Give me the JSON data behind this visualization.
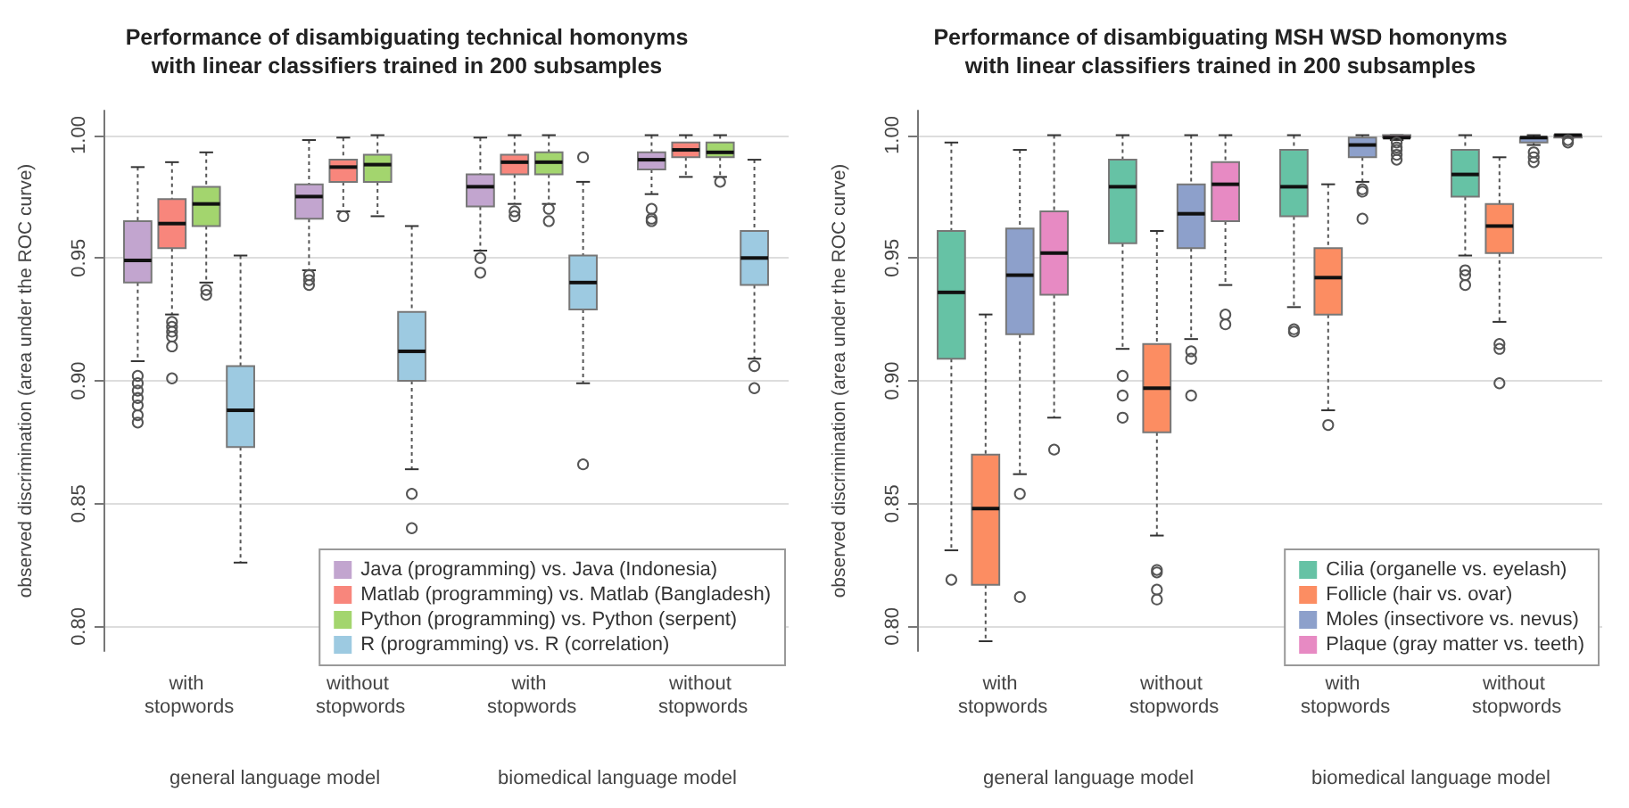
{
  "chart_data": [
    {
      "type": "box",
      "title": "Performance of disambiguating technical homonyms\nwith linear classifiers trained in 200 subsamples",
      "ylabel": "observed discrimination (area under the ROC curve)",
      "categories": [
        "with stopwords",
        "without stopwords",
        "with stopwords",
        "without stopwords"
      ],
      "annotations": [
        "general language model",
        "biomedical language model"
      ],
      "ylim": [
        0.79,
        1.01
      ],
      "yticks": [
        {
          "value": 0.8,
          "label": "0.80"
        },
        {
          "value": 0.85,
          "label": "0.85"
        },
        {
          "value": 0.9,
          "label": "0.90"
        },
        {
          "value": 0.95,
          "label": "0.95"
        },
        {
          "value": 1.0,
          "label": "1.00"
        }
      ],
      "grid": "y",
      "legend": "bottom right",
      "series": [
        {
          "name": "Java (programming) vs. Java (Indonesia)",
          "color": "#c2a5cf",
          "boxes": [
            {
              "low": 0.908,
              "q1": 0.94,
              "median": 0.949,
              "q3": 0.965,
              "high": 0.987,
              "outliers": [
                0.902,
                0.899,
                0.896,
                0.893,
                0.89,
                0.886,
                0.883
              ]
            },
            {
              "low": 0.945,
              "q1": 0.966,
              "median": 0.975,
              "q3": 0.98,
              "high": 0.998,
              "outliers": [
                0.943,
                0.941,
                0.939
              ]
            },
            {
              "low": 0.953,
              "q1": 0.971,
              "median": 0.979,
              "q3": 0.984,
              "high": 0.999,
              "outliers": [
                0.95,
                0.944
              ]
            },
            {
              "low": 0.976,
              "q1": 0.986,
              "median": 0.99,
              "q3": 0.993,
              "high": 1.0,
              "outliers": [
                0.97,
                0.966,
                0.965
              ]
            }
          ]
        },
        {
          "name": "Matlab (programming) vs. Matlab (Bangladesh)",
          "color": "#f8867c",
          "boxes": [
            {
              "low": 0.927,
              "q1": 0.954,
              "median": 0.964,
              "q3": 0.974,
              "high": 0.989,
              "outliers": [
                0.924,
                0.922,
                0.92,
                0.918,
                0.914,
                0.901
              ]
            },
            {
              "low": 0.969,
              "q1": 0.981,
              "median": 0.987,
              "q3": 0.99,
              "high": 0.999,
              "outliers": [
                0.967
              ]
            },
            {
              "low": 0.972,
              "q1": 0.984,
              "median": 0.989,
              "q3": 0.992,
              "high": 1.0,
              "outliers": [
                0.969,
                0.967
              ]
            },
            {
              "low": 0.983,
              "q1": 0.991,
              "median": 0.994,
              "q3": 0.997,
              "high": 1.0
            }
          ]
        },
        {
          "name": "Python (programming) vs. Python (serpent)",
          "color": "#a3d56e",
          "boxes": [
            {
              "low": 0.94,
              "q1": 0.963,
              "median": 0.972,
              "q3": 0.979,
              "high": 0.993,
              "outliers": [
                0.937,
                0.935
              ]
            },
            {
              "low": 0.967,
              "q1": 0.981,
              "median": 0.988,
              "q3": 0.992,
              "high": 1.0
            },
            {
              "low": 0.972,
              "q1": 0.984,
              "median": 0.989,
              "q3": 0.993,
              "high": 1.0,
              "outliers": [
                0.97,
                0.965
              ]
            },
            {
              "low": 0.983,
              "q1": 0.991,
              "median": 0.993,
              "q3": 0.997,
              "high": 1.0,
              "outliers": [
                0.981
              ]
            }
          ]
        },
        {
          "name": "R (programming) vs. R (correlation)",
          "color": "#9dcae1",
          "boxes": [
            {
              "low": 0.826,
              "q1": 0.873,
              "median": 0.888,
              "q3": 0.906,
              "high": 0.951
            },
            {
              "low": 0.864,
              "q1": 0.9,
              "median": 0.912,
              "q3": 0.928,
              "high": 0.963,
              "outliers": [
                0.854,
                0.84
              ]
            },
            {
              "low": 0.899,
              "q1": 0.929,
              "median": 0.94,
              "q3": 0.951,
              "high": 0.981,
              "outliers": [
                0.991,
                0.866
              ]
            },
            {
              "low": 0.909,
              "q1": 0.939,
              "median": 0.95,
              "q3": 0.961,
              "high": 0.99,
              "outliers": [
                0.906,
                0.897
              ]
            }
          ]
        }
      ]
    },
    {
      "type": "box",
      "title": "Performance of disambiguating MSH WSD homonyms\nwith linear classifiers trained in 200 subsamples",
      "ylabel": "observed discrimination (area under the ROC curve)",
      "categories": [
        "with stopwords",
        "without stopwords",
        "with stopwords",
        "without stopwords"
      ],
      "annotations": [
        "general language model",
        "biomedical language model"
      ],
      "ylim": [
        0.79,
        1.01
      ],
      "yticks": [
        {
          "value": 0.8,
          "label": "0.80"
        },
        {
          "value": 0.85,
          "label": "0.85"
        },
        {
          "value": 0.9,
          "label": "0.90"
        },
        {
          "value": 0.95,
          "label": "0.95"
        },
        {
          "value": 1.0,
          "label": "1.00"
        }
      ],
      "grid": "y",
      "legend": "bottom right",
      "series": [
        {
          "name": "Cilia (organelle vs. eyelash)",
          "color": "#66c2a5",
          "boxes": [
            {
              "low": 0.831,
              "q1": 0.909,
              "median": 0.936,
              "q3": 0.961,
              "high": 0.997,
              "outliers": [
                0.819
              ]
            },
            {
              "low": 0.913,
              "q1": 0.956,
              "median": 0.979,
              "q3": 0.99,
              "high": 1.0,
              "outliers": [
                0.902,
                0.894,
                0.885
              ]
            },
            {
              "low": 0.93,
              "q1": 0.967,
              "median": 0.979,
              "q3": 0.994,
              "high": 1.0,
              "outliers": [
                0.921,
                0.92
              ]
            },
            {
              "low": 0.951,
              "q1": 0.975,
              "median": 0.984,
              "q3": 0.994,
              "high": 1.0,
              "outliers": [
                0.945,
                0.943,
                0.939
              ]
            }
          ]
        },
        {
          "name": "Follicle (hair vs. ovar)",
          "color": "#fc8d62",
          "boxes": [
            {
              "low": 0.794,
              "q1": 0.817,
              "median": 0.848,
              "q3": 0.87,
              "high": 0.927
            },
            {
              "low": 0.837,
              "q1": 0.879,
              "median": 0.897,
              "q3": 0.915,
              "high": 0.961,
              "outliers": [
                0.823,
                0.822,
                0.815,
                0.811
              ]
            },
            {
              "low": 0.888,
              "q1": 0.927,
              "median": 0.942,
              "q3": 0.954,
              "high": 0.98,
              "outliers": [
                0.882
              ]
            },
            {
              "low": 0.924,
              "q1": 0.952,
              "median": 0.963,
              "q3": 0.972,
              "high": 0.991,
              "outliers": [
                0.915,
                0.913,
                0.899
              ]
            }
          ]
        },
        {
          "name": "Moles (insectivore vs. nevus)",
          "color": "#8da0cb",
          "boxes": [
            {
              "low": 0.862,
              "q1": 0.919,
              "median": 0.943,
              "q3": 0.962,
              "high": 0.994,
              "outliers": [
                0.854,
                0.812
              ]
            },
            {
              "low": 0.917,
              "q1": 0.954,
              "median": 0.968,
              "q3": 0.98,
              "high": 1.0,
              "outliers": [
                0.912,
                0.909,
                0.894
              ]
            },
            {
              "low": 0.981,
              "q1": 0.991,
              "median": 0.996,
              "q3": 0.999,
              "high": 1.0,
              "outliers": [
                0.978,
                0.977,
                0.966
              ]
            },
            {
              "low": 0.996,
              "q1": 0.997,
              "median": 0.999,
              "q3": 0.999,
              "high": 1.0,
              "outliers": [
                0.993,
                0.991,
                0.989
              ]
            }
          ]
        },
        {
          "name": "Plaque (gray matter vs. teeth)",
          "color": "#e78ac3",
          "boxes": [
            {
              "low": 0.885,
              "q1": 0.935,
              "median": 0.952,
              "q3": 0.969,
              "high": 1.0,
              "outliers": [
                0.872
              ]
            },
            {
              "low": 0.939,
              "q1": 0.965,
              "median": 0.98,
              "q3": 0.989,
              "high": 1.0,
              "outliers": [
                0.927,
                0.923
              ]
            },
            {
              "low": 0.998,
              "q1": 0.999,
              "median": 0.999,
              "q3": 1.0,
              "high": 1.0,
              "outliers": [
                0.997,
                0.995,
                0.994,
                0.992,
                0.99
              ]
            },
            {
              "low": 0.999,
              "q1": 0.999,
              "median": 1.0,
              "q3": 1.0,
              "high": 1.0,
              "outliers": [
                0.998,
                0.997
              ]
            }
          ]
        }
      ]
    }
  ]
}
